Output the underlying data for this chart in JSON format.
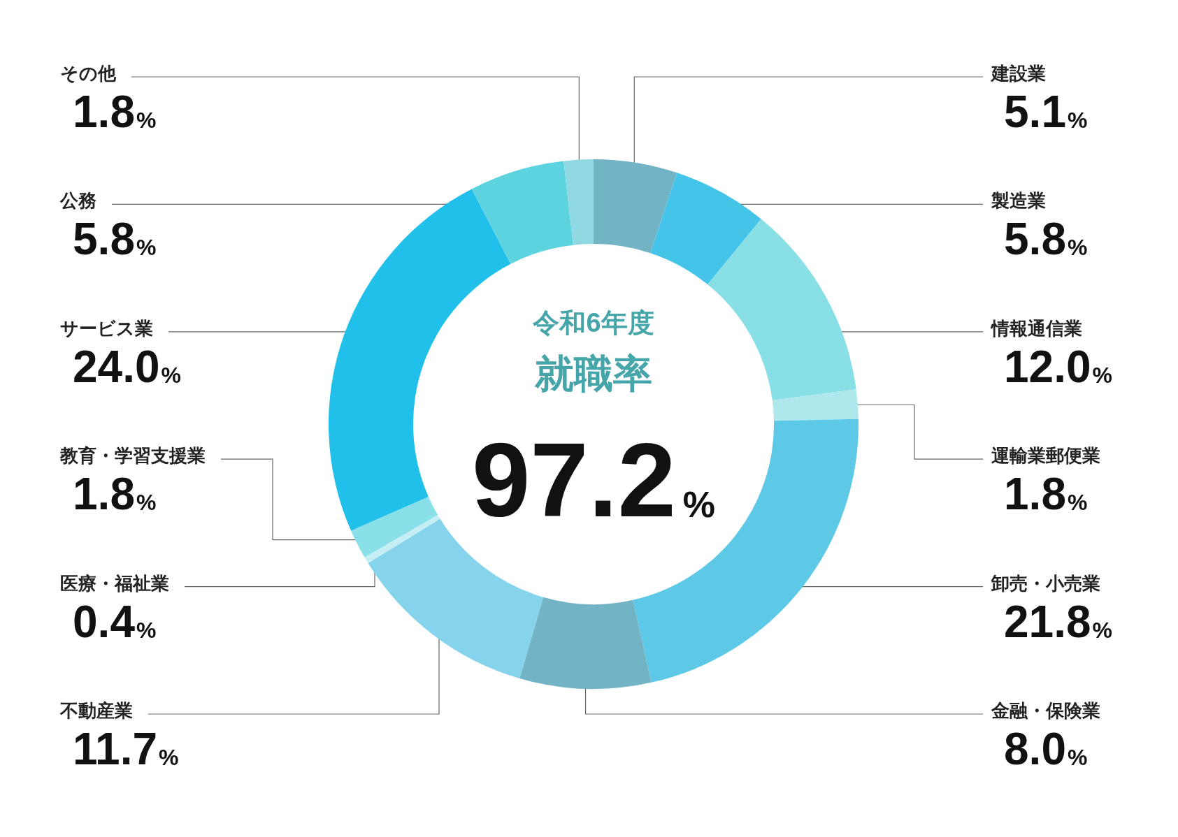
{
  "chart_data": {
    "type": "donut",
    "subtitle": "令和6年度",
    "title": "就職率",
    "annotations": [
      "97.2%"
    ],
    "categories": [
      "建設業",
      "製造業",
      "情報通信業",
      "運輸業郵便業",
      "卸売・小売業",
      "金融・保険業",
      "不動産業",
      "医療・福祉業",
      "教育・学習支援業",
      "サービス業",
      "公務",
      "その他"
    ],
    "values": [
      5.1,
      5.8,
      12.0,
      1.8,
      21.8,
      8.0,
      11.7,
      0.4,
      1.8,
      24.0,
      5.8,
      1.8
    ],
    "value_labels": [
      "5.1%",
      "5.8%",
      "12.0%",
      "1.8%",
      "21.8%",
      "8.0%",
      "11.7%",
      "0.4%",
      "1.8%",
      "24.0%",
      "5.8%",
      "1.8%"
    ],
    "colors": [
      "#72b3c6",
      "#45c4ea",
      "#88dfe6",
      "#aee8ec",
      "#5ec9e7",
      "#72b3c6",
      "#85d4ec",
      "#c6eef5",
      "#8ae0e8",
      "#20c0eb",
      "#5cd3df",
      "#90d9e3"
    ]
  }
}
